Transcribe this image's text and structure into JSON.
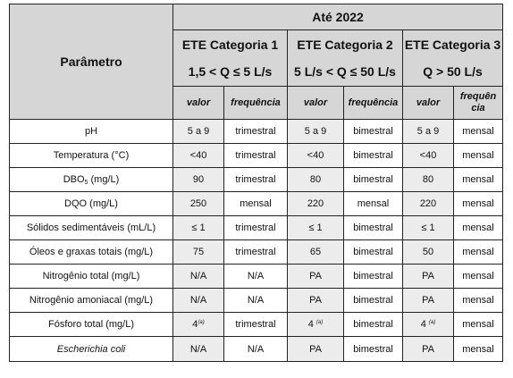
{
  "header": {
    "parametro": "Parâmetro",
    "period": "Até 2022",
    "categories": [
      {
        "name": "ETE Categoria 1",
        "range": "1,5 < Q ≤ 5 L/s"
      },
      {
        "name": "ETE Categoria 2",
        "range": "5 L/s < Q ≤ 50 L/s"
      },
      {
        "name": "ETE Categoria 3",
        "range": "Q > 50 L/s"
      }
    ],
    "sub": {
      "valor": "valor",
      "frequencia": "frequência",
      "frequencia_split_a": "frequên",
      "frequencia_split_b": "cia"
    }
  },
  "rows": [
    {
      "param": "pH",
      "c1v": "5 a 9",
      "c1f": "trimestral",
      "c2v": "5 a 9",
      "c2f": "bimestral",
      "c3v": "5 a 9",
      "c3f": "mensal"
    },
    {
      "param": "Temperatura (°C)",
      "c1v": "<40",
      "c1f": "trimestral",
      "c2v": "<40",
      "c2f": "bimestral",
      "c3v": "<40",
      "c3f": "mensal"
    },
    {
      "param_a": "DBO",
      "param_sub": "5",
      "param_b": " (mg/L)",
      "c1v": "90",
      "c1f": "trimestral",
      "c2v": "80",
      "c2f": "bimestral",
      "c3v": "80",
      "c3f": "mensal"
    },
    {
      "param": "DQO (mg/L)",
      "c1v": "250",
      "c1f": "mensal",
      "c2v": "220",
      "c2f": "mensal",
      "c3v": "220",
      "c3f": "mensal"
    },
    {
      "param": "Sólidos sedimentáveis (mL/L)",
      "c1v": "≤ 1",
      "c1f": "trimestral",
      "c2v": "≤ 1",
      "c2f": "bimestral",
      "c3v": "≤ 1",
      "c3f": "mensal"
    },
    {
      "param": "Óleos e graxas totais (mg/L)",
      "c1v": "75",
      "c1f": "trimestral",
      "c2v": "65",
      "c2f": "bimestral",
      "c3v": "50",
      "c3f": "mensal"
    },
    {
      "param": "Nitrogênio total (mg/L)",
      "c1v": "N/A",
      "c1f": "N/A",
      "c2v": "PA",
      "c2f": "bimestral",
      "c3v": "PA",
      "c3f": "mensal"
    },
    {
      "param": "Nitrogênio amoniacal (mg/L)",
      "c1v": "N/A",
      "c1f": "N/A",
      "c2v": "PA",
      "c2f": "bimestral",
      "c3v": "PA",
      "c3f": "mensal"
    },
    {
      "param": "Fósforo total (mg/L)",
      "c1v": "4",
      "c1v_sup": "(a)",
      "c1f": "trimestral",
      "c2v": "4 ",
      "c2v_sup": "(a)",
      "c2f": "bimestral",
      "c3v": "4 ",
      "c3v_sup": "(a)",
      "c3f": "mensal"
    },
    {
      "param": "Escherichia coli",
      "c1v": "N/A",
      "c1f": "N/A",
      "c2v": "PA",
      "c2f": "bimestral",
      "c3v": "PA",
      "c3f": "mensal"
    }
  ]
}
